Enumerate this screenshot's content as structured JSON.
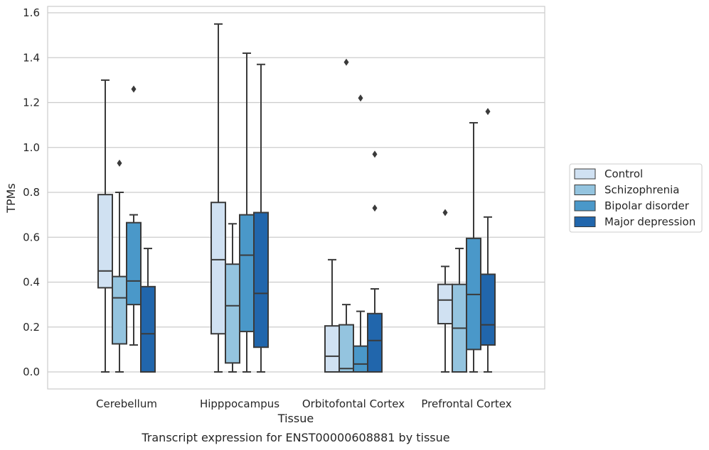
{
  "colors": {
    "background": "#ffffff",
    "grid": "#cccccc",
    "line": "#3a3a3a",
    "frame": "#cccccc"
  },
  "chart_data": {
    "type": "box",
    "title": "Transcript expression for ENST00000608881 by tissue",
    "xlabel": "Tissue",
    "ylabel": "TPMs",
    "ylim": [
      -0.075,
      1.63
    ],
    "yticks": [
      "0.0",
      "0.2",
      "0.4",
      "0.6",
      "0.8",
      "1.0",
      "1.2",
      "1.4",
      "1.6"
    ],
    "grid": true,
    "legend_position": "right",
    "categories": [
      "Cerebellum",
      "Hipppocampus",
      "Orbitofontal Cortex",
      "Prefrontal Cortex"
    ],
    "series": [
      {
        "name": "Control",
        "color": "#d0e1f2",
        "boxes": [
          {
            "q1": 0.375,
            "median": 0.45,
            "q3": 0.79,
            "whisker_low": 0.0,
            "whisker_high": 1.3,
            "outliers": []
          },
          {
            "q1": 0.17,
            "median": 0.5,
            "q3": 0.755,
            "whisker_low": 0.0,
            "whisker_high": 1.55,
            "outliers": []
          },
          {
            "q1": 0.0,
            "median": 0.07,
            "q3": 0.205,
            "whisker_low": 0.0,
            "whisker_high": 0.5,
            "outliers": []
          },
          {
            "q1": 0.215,
            "median": 0.32,
            "q3": 0.39,
            "whisker_low": 0.0,
            "whisker_high": 0.47,
            "outliers": [
              0.71
            ]
          }
        ]
      },
      {
        "name": "Schizophrenia",
        "color": "#94c4df",
        "boxes": [
          {
            "q1": 0.125,
            "median": 0.33,
            "q3": 0.425,
            "whisker_low": 0.0,
            "whisker_high": 0.8,
            "outliers": [
              0.93
            ]
          },
          {
            "q1": 0.04,
            "median": 0.295,
            "q3": 0.48,
            "whisker_low": 0.0,
            "whisker_high": 0.66,
            "outliers": []
          },
          {
            "q1": 0.0,
            "median": 0.015,
            "q3": 0.21,
            "whisker_low": 0.0,
            "whisker_high": 0.3,
            "outliers": [
              1.38
            ]
          },
          {
            "q1": 0.0,
            "median": 0.195,
            "q3": 0.39,
            "whisker_low": 0.0,
            "whisker_high": 0.55,
            "outliers": []
          }
        ]
      },
      {
        "name": "Bipolar disorder",
        "color": "#4a98c9",
        "boxes": [
          {
            "q1": 0.3,
            "median": 0.405,
            "q3": 0.665,
            "whisker_low": 0.12,
            "whisker_high": 0.7,
            "outliers": [
              1.26
            ]
          },
          {
            "q1": 0.18,
            "median": 0.52,
            "q3": 0.7,
            "whisker_low": 0.0,
            "whisker_high": 1.42,
            "outliers": []
          },
          {
            "q1": 0.0,
            "median": 0.035,
            "q3": 0.115,
            "whisker_low": 0.0,
            "whisker_high": 0.27,
            "outliers": [
              1.22
            ]
          },
          {
            "q1": 0.1,
            "median": 0.345,
            "q3": 0.595,
            "whisker_low": 0.0,
            "whisker_high": 1.11,
            "outliers": []
          }
        ]
      },
      {
        "name": "Major depression",
        "color": "#2166ac",
        "boxes": [
          {
            "q1": 0.0,
            "median": 0.17,
            "q3": 0.38,
            "whisker_low": 0.0,
            "whisker_high": 0.55,
            "outliers": []
          },
          {
            "q1": 0.11,
            "median": 0.35,
            "q3": 0.71,
            "whisker_low": 0.0,
            "whisker_high": 1.37,
            "outliers": []
          },
          {
            "q1": 0.0,
            "median": 0.14,
            "q3": 0.26,
            "whisker_low": 0.0,
            "whisker_high": 0.37,
            "outliers": [
              0.97,
              0.73
            ]
          },
          {
            "q1": 0.12,
            "median": 0.21,
            "q3": 0.435,
            "whisker_low": 0.0,
            "whisker_high": 0.69,
            "outliers": [
              1.16
            ]
          }
        ]
      }
    ]
  }
}
